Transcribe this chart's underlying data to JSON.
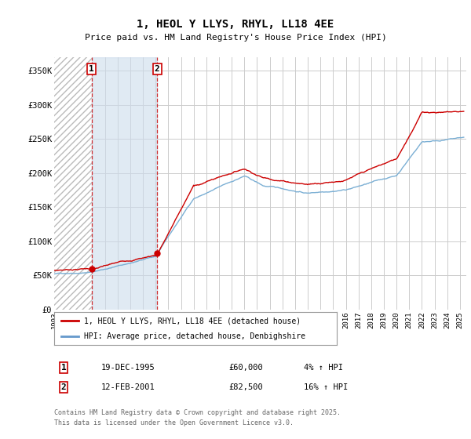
{
  "title": "1, HEOL Y LLYS, RHYL, LL18 4EE",
  "subtitle": "Price paid vs. HM Land Registry's House Price Index (HPI)",
  "ylabel_ticks": [
    "£0",
    "£50K",
    "£100K",
    "£150K",
    "£200K",
    "£250K",
    "£300K",
    "£350K"
  ],
  "ytick_vals": [
    0,
    50000,
    100000,
    150000,
    200000,
    250000,
    300000,
    350000
  ],
  "ylim": [
    0,
    370000
  ],
  "xlim_start": 1993.0,
  "xlim_end": 2025.5,
  "xtick_years": [
    1993,
    1994,
    1995,
    1996,
    1997,
    1998,
    1999,
    2000,
    2001,
    2002,
    2003,
    2004,
    2005,
    2006,
    2007,
    2008,
    2009,
    2010,
    2011,
    2012,
    2013,
    2014,
    2015,
    2016,
    2017,
    2018,
    2019,
    2020,
    2021,
    2022,
    2023,
    2024,
    2025
  ],
  "legend_line1_color": "#cc0000",
  "legend_line2_color": "#6699cc",
  "legend_label1": "1, HEOL Y LLYS, RHYL, LL18 4EE (detached house)",
  "legend_label2": "HPI: Average price, detached house, Denbighshire",
  "marker1_date": 1995.96,
  "marker1_price": 60000,
  "marker1_label": "1",
  "marker2_date": 2001.12,
  "marker2_price": 82500,
  "marker2_label": "2",
  "transaction1": [
    "19-DEC-1995",
    "£60,000",
    "4% ↑ HPI"
  ],
  "transaction2": [
    "12-FEB-2001",
    "£82,500",
    "16% ↑ HPI"
  ],
  "footer": "Contains HM Land Registry data © Crown copyright and database right 2025.\nThis data is licensed under the Open Government Licence v3.0.",
  "grid_color": "#cccccc",
  "bg_color": "#ffffff",
  "hpi_line_color": "#7bafd4",
  "price_line_color": "#cc0000",
  "hatch_gray_color": "#bbbbbb",
  "hatch_blue_color": "#ccdcec"
}
